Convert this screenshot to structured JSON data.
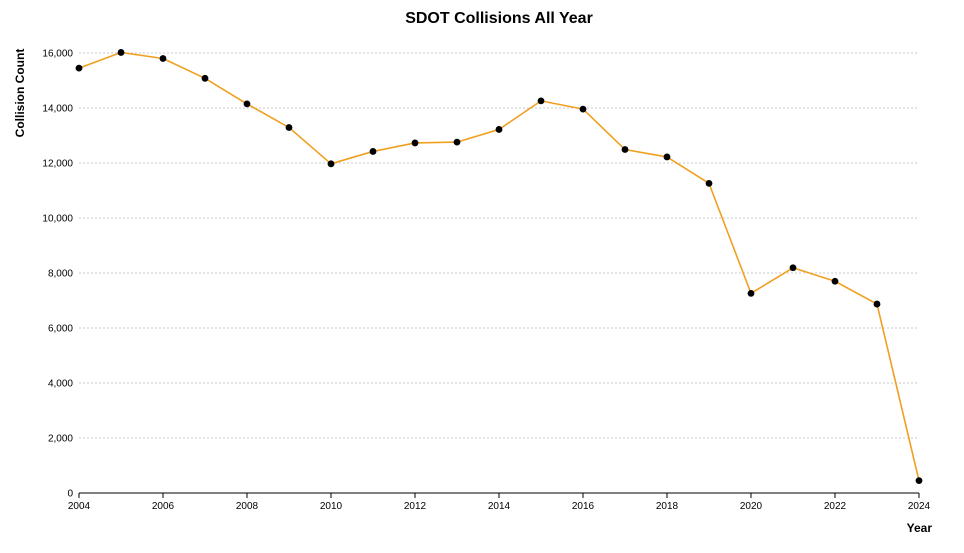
{
  "chart_data": {
    "type": "line",
    "title": "SDOT Collisions All Year",
    "xlabel": "Year",
    "ylabel": "Collision Count",
    "x": [
      2004,
      2005,
      2006,
      2007,
      2008,
      2009,
      2010,
      2011,
      2012,
      2013,
      2014,
      2015,
      2016,
      2017,
      2018,
      2019,
      2020,
      2021,
      2022,
      2023,
      2024
    ],
    "series": [
      {
        "values": [
          15450,
          16020,
          15800,
          15080,
          14150,
          13290,
          11970,
          12420,
          12730,
          12760,
          13220,
          14260,
          13960,
          12490,
          12220,
          11260,
          7260,
          8190,
          7700,
          6870,
          450
        ],
        "color": "#f0a020"
      }
    ],
    "xlim": [
      2004,
      2024
    ],
    "ylim": [
      0,
      16000
    ],
    "x_ticks": [
      "2004",
      "2006",
      "2008",
      "2010",
      "2012",
      "2014",
      "2016",
      "2018",
      "2020",
      "2022",
      "2024"
    ],
    "y_ticks": [
      "0",
      "2,000",
      "4,000",
      "6,000",
      "8,000",
      "10,000",
      "12,000",
      "14,000",
      "16,000"
    ],
    "grid": true,
    "marker_color": "#000000"
  }
}
